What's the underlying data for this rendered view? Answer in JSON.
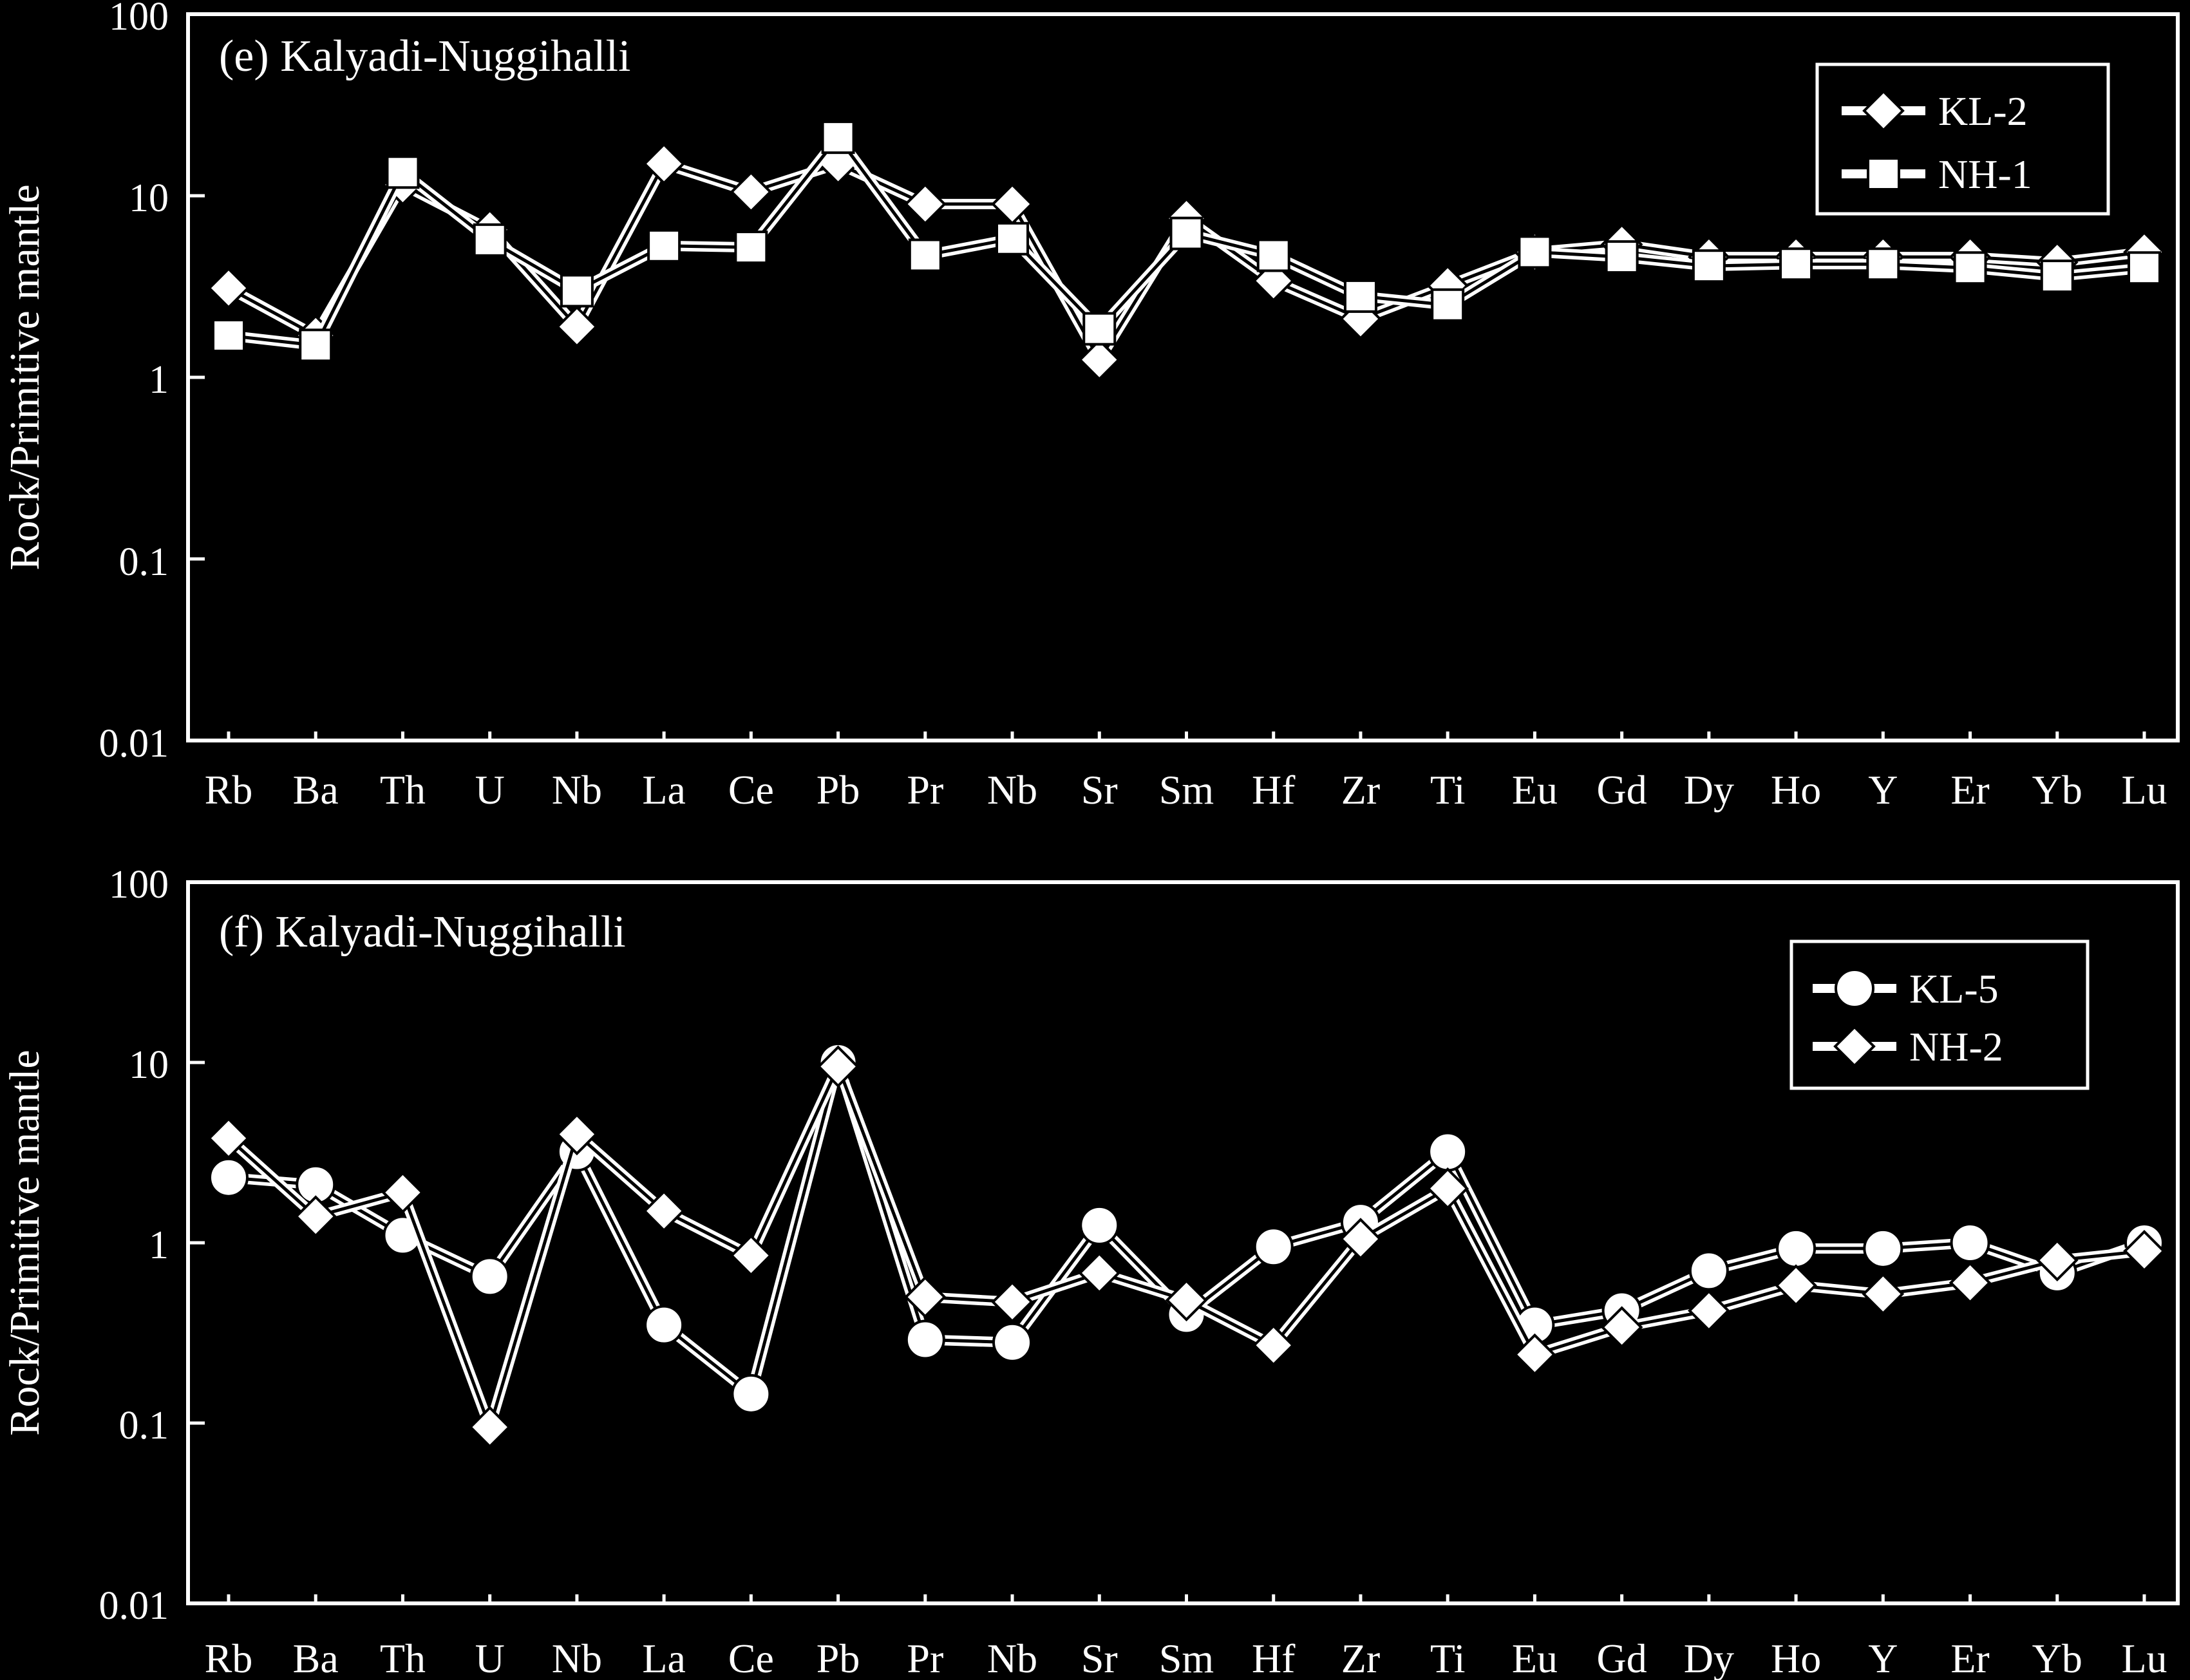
{
  "chart_data": [
    {
      "type": "line",
      "title": "(e) Kalyadi-Nuggihalli",
      "ylabel": "Rock/Primitive mantle",
      "xlabel": "",
      "yscale": "log",
      "ylim": [
        0.01,
        100
      ],
      "yticks": [
        "100",
        "10",
        "1",
        "0.1",
        "0.01"
      ],
      "categories": [
        "Rb",
        "Ba",
        "Th",
        "U",
        "Nb",
        "La",
        "Ce",
        "Pb",
        "Pr",
        "Nb",
        "Sr",
        "Sm",
        "Hf",
        "Zr",
        "Ti",
        "Eu",
        "Gd",
        "Dy",
        "Ho",
        "Y",
        "Er",
        "Yb",
        "Lu"
      ],
      "legend_position": "top-right",
      "series": [
        {
          "name": "KL-2",
          "marker": "diamond",
          "values": [
            3.1,
            1.7,
            11.5,
            6.5,
            1.9,
            15.0,
            10.5,
            15.0,
            9.0,
            9.0,
            1.25,
            7.5,
            3.4,
            2.1,
            3.2,
            4.9,
            5.4,
            4.6,
            4.6,
            4.6,
            4.6,
            4.3,
            4.9
          ]
        },
        {
          "name": "NH-1",
          "marker": "square",
          "values": [
            1.7,
            1.5,
            13.5,
            5.7,
            3.0,
            5.3,
            5.2,
            21.0,
            4.7,
            5.8,
            1.85,
            6.2,
            4.7,
            2.8,
            2.5,
            4.9,
            4.6,
            4.1,
            4.2,
            4.2,
            4.0,
            3.6,
            4.0
          ]
        }
      ]
    },
    {
      "type": "line",
      "title": "(f) Kalyadi-Nuggihalli",
      "ylabel": "Rock/Primitive mantle",
      "xlabel": "",
      "yscale": "log",
      "ylim": [
        0.01,
        100
      ],
      "yticks": [
        "100",
        "10",
        "1",
        "0.1",
        "0.01"
      ],
      "categories": [
        "Rb",
        "Ba",
        "Th",
        "U",
        "Nb",
        "La",
        "Ce",
        "Pb",
        "Pr",
        "Nb",
        "Sr",
        "Sm",
        "Hf",
        "Zr",
        "Ti",
        "Eu",
        "Gd",
        "Dy",
        "Ho",
        "Y",
        "Er",
        "Yb",
        "Lu"
      ],
      "legend_position": "top-right",
      "series": [
        {
          "name": "KL-5",
          "marker": "circle",
          "values": [
            2.3,
            2.1,
            1.1,
            0.65,
            3.2,
            0.35,
            0.145,
            10.0,
            0.29,
            0.28,
            1.25,
            0.4,
            0.95,
            1.3,
            3.2,
            0.35,
            0.42,
            0.7,
            0.93,
            0.93,
            1.0,
            0.68,
            1.0
          ]
        },
        {
          "name": "NH-2",
          "marker": "diamond",
          "values": [
            3.8,
            1.4,
            1.9,
            0.095,
            4.0,
            1.5,
            0.85,
            9.5,
            0.5,
            0.47,
            0.68,
            0.48,
            0.27,
            1.05,
            2.0,
            0.24,
            0.34,
            0.42,
            0.58,
            0.52,
            0.6,
            0.8,
            0.9
          ]
        }
      ]
    }
  ]
}
